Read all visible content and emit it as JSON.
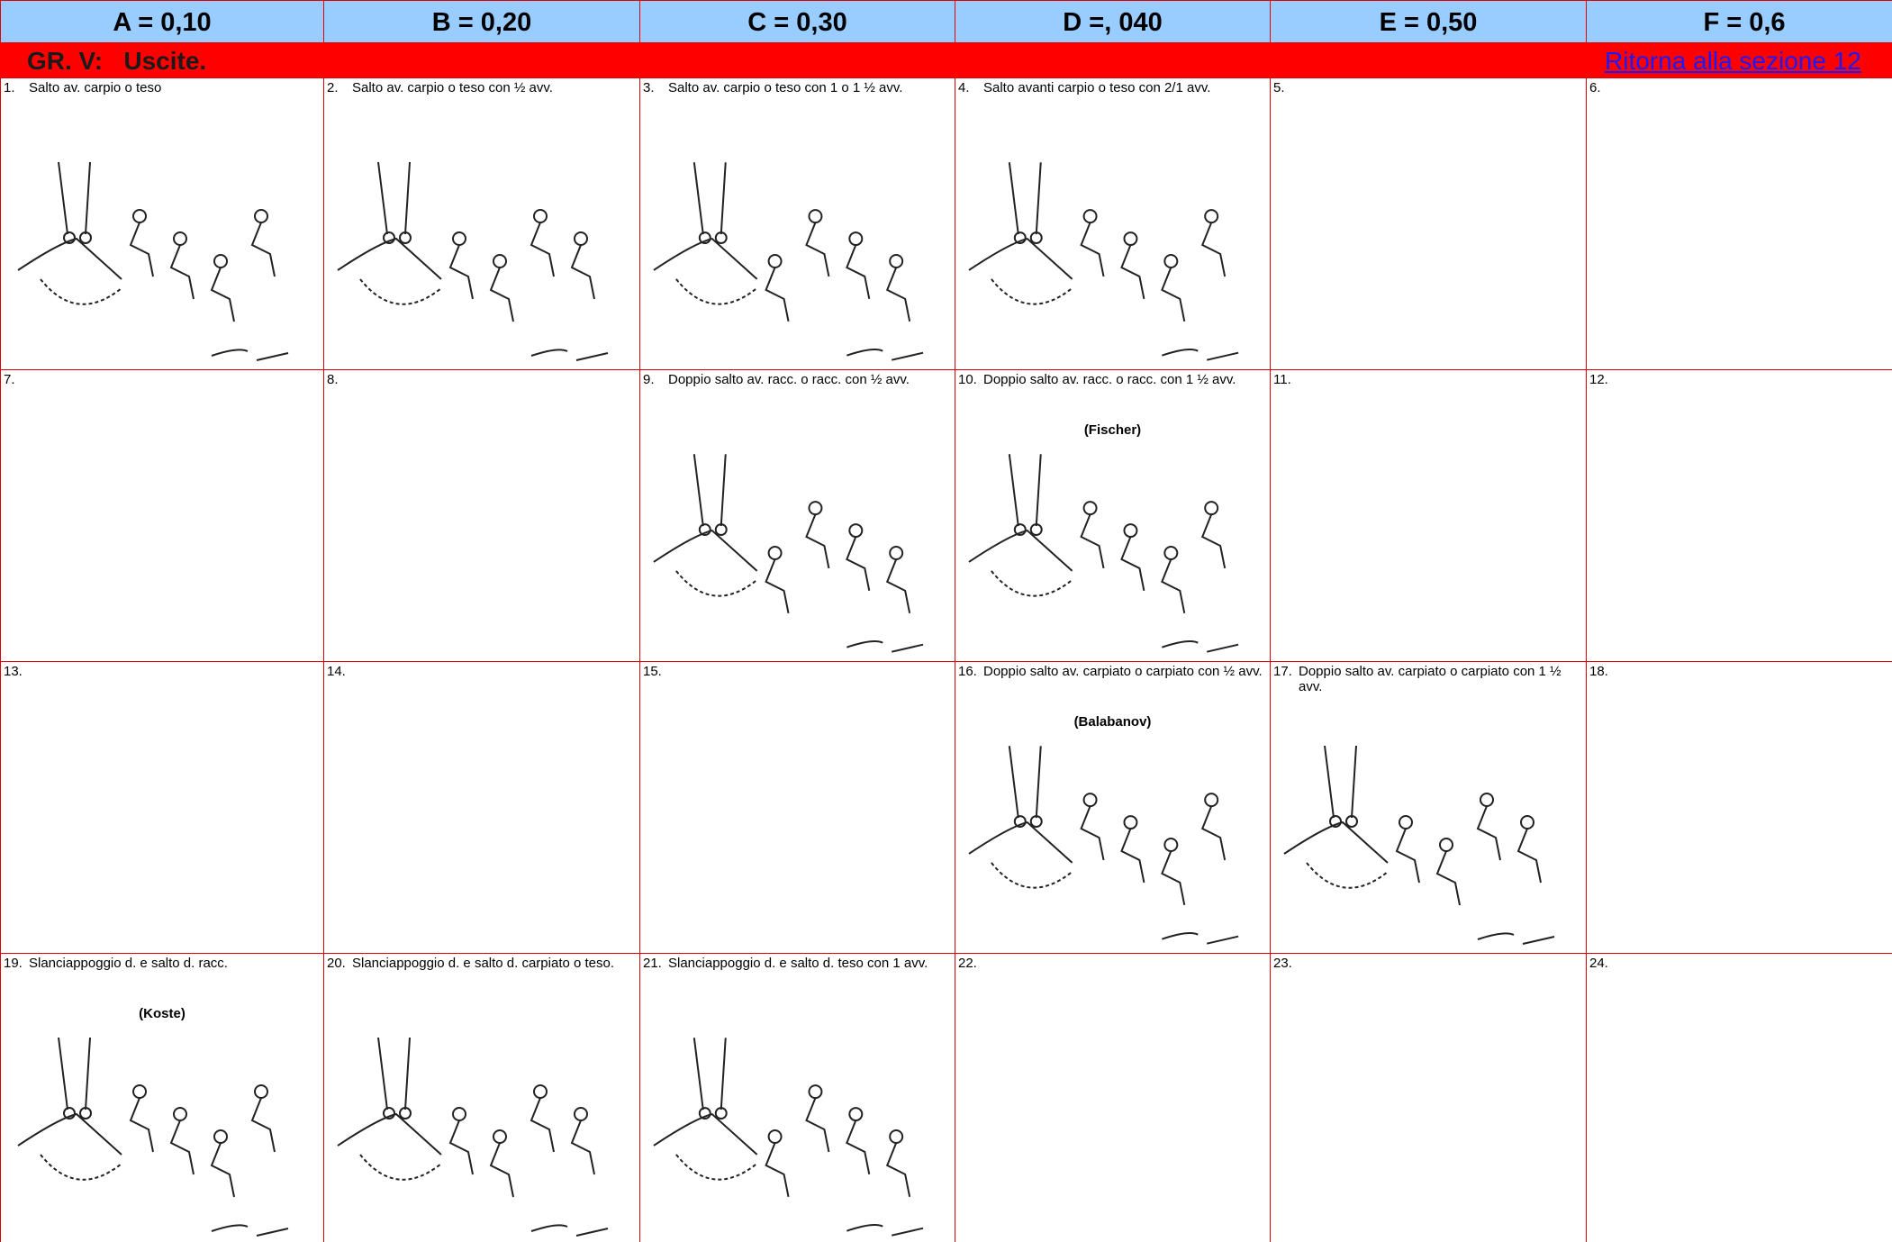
{
  "header": {
    "columns": [
      "A = 0,10",
      "B = 0,20",
      "C = 0,30",
      "D =, 040",
      "E = 0,50",
      "F = 0,6"
    ]
  },
  "section": {
    "title": "GR. V:   Uscite.",
    "link": "Ritorna alla sezione 12"
  },
  "cells": [
    {
      "number": "1.",
      "text": "Salto av. carpio o teso"
    },
    {
      "number": "2.",
      "text": "Salto av. carpio o teso con ½  avv."
    },
    {
      "number": "3.",
      "text": "Salto av. carpio o teso con 1 o 1 ½  avv."
    },
    {
      "number": "4.",
      "text": "Salto avanti carpio o teso con 2/1 avv."
    },
    {
      "number": "5."
    },
    {
      "number": "6."
    },
    {
      "number": "7."
    },
    {
      "number": "8."
    },
    {
      "number": "9.",
      "text": "Doppio salto av. racc. o racc. con ½  avv."
    },
    {
      "number": "10.",
      "text": "Doppio salto av. racc. o racc. con 1 ½  avv.",
      "name": "(Fischer)"
    },
    {
      "number": "11."
    },
    {
      "number": "12."
    },
    {
      "number": "13."
    },
    {
      "number": "14."
    },
    {
      "number": "15."
    },
    {
      "number": "16.",
      "text": "Doppio salto av. carpiato o carpiato con ½ avv.",
      "name": "(Balabanov)"
    },
    {
      "number": "17.",
      "text": "Doppio salto av. carpiato o carpiato con 1 ½ avv."
    },
    {
      "number": "18."
    },
    {
      "number": "19.",
      "text": "Slanciappoggio d. e salto d. racc.",
      "name": "(Koste)"
    },
    {
      "number": "20.",
      "text": "Slanciappoggio d. e salto d. carpiato o teso."
    },
    {
      "number": "21.",
      "text": "Slanciappoggio d. e salto d. teso con 1 avv."
    },
    {
      "number": "22."
    },
    {
      "number": "23."
    },
    {
      "number": "24."
    }
  ]
}
